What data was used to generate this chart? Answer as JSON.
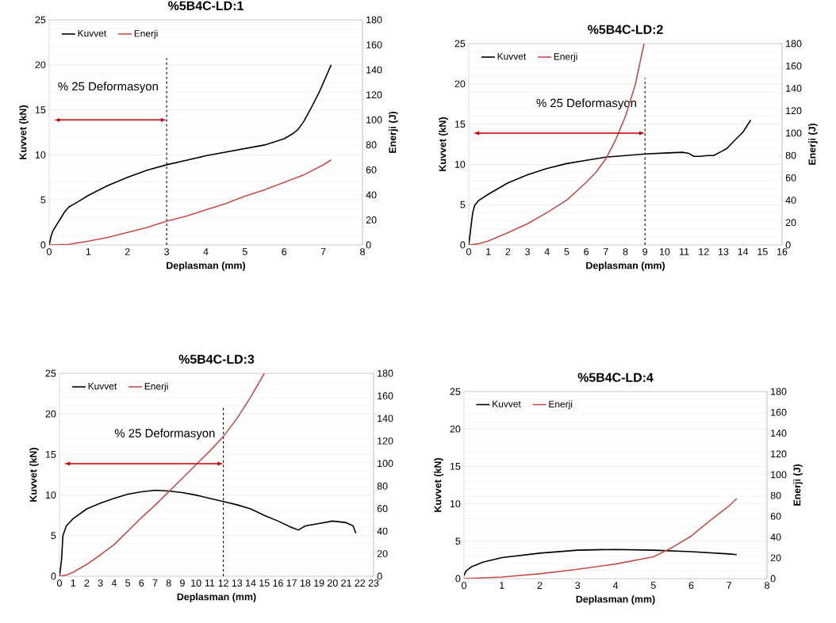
{
  "chart_data": [
    {
      "type": "line",
      "title": "%5B4C-LD:1",
      "xlabel": "Deplasman (mm)",
      "ylabel": "Kuvvet (kN)",
      "y2label": "Enerji (J)",
      "xlim": [
        0,
        8
      ],
      "xticks": [
        0,
        1,
        2,
        3,
        4,
        5,
        6,
        7,
        8
      ],
      "ylim": [
        0,
        25
      ],
      "yticks": [
        0,
        5,
        10,
        15,
        20,
        25
      ],
      "y2lim": [
        0,
        180
      ],
      "y2ticks": [
        0,
        20,
        40,
        60,
        80,
        100,
        120,
        140,
        160,
        180
      ],
      "grid": "y",
      "legend": "top left",
      "ref_lines": [
        {
          "axis": "x",
          "value": 3,
          "label": "% 25 Deformasyon",
          "line_style": "dashed",
          "color": "#000000"
        }
      ],
      "series": [
        {
          "name": "Kuvvet",
          "color": "#000000",
          "x": [
            0,
            0.05,
            0.1,
            0.2,
            0.3,
            0.4,
            0.5,
            0.7,
            1,
            1.5,
            2,
            2.5,
            3,
            3.5,
            4,
            4.5,
            5,
            5.5,
            5.8,
            6,
            6.2,
            6.35,
            6.5,
            6.7,
            6.9,
            7.1,
            7.2
          ],
          "values": [
            0,
            1,
            1.6,
            2.3,
            3,
            3.7,
            4.2,
            4.7,
            5.5,
            6.6,
            7.5,
            8.3,
            8.9,
            9.4,
            9.9,
            10.3,
            10.7,
            11.1,
            11.5,
            11.8,
            12.3,
            12.8,
            13.7,
            15.3,
            17,
            19,
            20
          ]
        },
        {
          "name": "Enerji",
          "color": "#c0504d",
          "axis": "y2",
          "x": [
            0,
            0.5,
            1,
            1.5,
            2,
            2.5,
            3,
            3.5,
            4,
            4.5,
            5,
            5.5,
            6,
            6.5,
            7,
            7.2
          ],
          "values": [
            0,
            0.5,
            3,
            6,
            10,
            14,
            19,
            23,
            28,
            33,
            39,
            44,
            50,
            56,
            64,
            68
          ]
        }
      ]
    },
    {
      "type": "line",
      "title": "%5B4C-LD:2",
      "xlabel": "Deplasman (mm)",
      "ylabel": "Kuvvet (kN)",
      "y2label": "Enerji (J)",
      "xlim": [
        0,
        16
      ],
      "xticks": [
        0,
        1,
        2,
        3,
        4,
        5,
        6,
        7,
        8,
        9,
        10,
        11,
        12,
        13,
        14,
        15,
        16
      ],
      "ylim": [
        0,
        25
      ],
      "yticks": [
        0,
        5,
        10,
        15,
        20,
        25
      ],
      "y2lim": [
        0,
        180
      ],
      "y2ticks": [
        0,
        20,
        40,
        60,
        80,
        100,
        120,
        140,
        160,
        180
      ],
      "grid": "y",
      "legend": "top left",
      "ref_lines": [
        {
          "axis": "x",
          "value": 9,
          "label": "% 25 Deformasyon",
          "line_style": "dashed",
          "color": "#000000"
        }
      ],
      "series": [
        {
          "name": "Kuvvet",
          "color": "#000000",
          "x": [
            0,
            0.1,
            0.2,
            0.3,
            0.5,
            1,
            2,
            3,
            4,
            5,
            6,
            7,
            8,
            9,
            10,
            10.9,
            11.2,
            11.5,
            11.8,
            12.2,
            12.5,
            12.9,
            13.2,
            13.5,
            14,
            14.4
          ],
          "values": [
            0,
            2,
            4,
            4.9,
            5.5,
            6.3,
            7.7,
            8.7,
            9.5,
            10.1,
            10.5,
            10.9,
            11.1,
            11.3,
            11.4,
            11.5,
            11.4,
            11,
            11,
            11.1,
            11.1,
            11.6,
            12,
            12.8,
            14,
            15.5
          ]
        },
        {
          "name": "Enerji",
          "color": "#c0504d",
          "axis": "y2",
          "x": [
            0,
            0.5,
            1,
            2,
            3,
            4,
            5,
            6,
            6.5,
            7,
            7.5,
            8,
            8.5,
            8.95
          ],
          "values": [
            0,
            1,
            3.5,
            11,
            19,
            29,
            40,
            56,
            65,
            77,
            94,
            115,
            143,
            180
          ]
        }
      ]
    },
    {
      "type": "line",
      "title": "%5B4C-LD:3",
      "xlabel": "Deplasman (mm)",
      "ylabel": "Kuvvet (kN)",
      "xlim": [
        0,
        23
      ],
      "xticks": [
        0,
        1,
        2,
        3,
        4,
        5,
        6,
        7,
        8,
        9,
        10,
        11,
        12,
        13,
        14,
        15,
        16,
        17,
        18,
        19,
        20,
        21,
        22,
        23
      ],
      "ylim": [
        0,
        25
      ],
      "yticks": [
        0,
        5,
        10,
        15,
        20,
        25
      ],
      "y2lim": [
        0,
        180
      ],
      "y2ticks": [
        0,
        20,
        40,
        60,
        80,
        100,
        120,
        140,
        160,
        180
      ],
      "grid": "y",
      "legend": "top left",
      "ref_lines": [
        {
          "axis": "x",
          "value": 12,
          "label": "% 25 Deformasyon",
          "line_style": "dashed",
          "color": "#000000"
        }
      ],
      "series": [
        {
          "name": "Kuvvet",
          "color": "#000000",
          "x": [
            0,
            0.15,
            0.25,
            0.5,
            1,
            2,
            3,
            4,
            5,
            6,
            7,
            8,
            9,
            10,
            11,
            12,
            13,
            14,
            15,
            16,
            17,
            17.5,
            18,
            19,
            20,
            21,
            21.5,
            21.7
          ],
          "values": [
            0,
            2,
            5,
            6.2,
            7.1,
            8.3,
            9,
            9.6,
            10.1,
            10.4,
            10.6,
            10.5,
            10.3,
            10,
            9.6,
            9.2,
            8.8,
            8.3,
            7.5,
            6.8,
            6,
            5.7,
            6.2,
            6.5,
            6.8,
            6.6,
            6.2,
            5.3
          ]
        },
        {
          "name": "Enerji",
          "color": "#c0504d",
          "axis": "y2",
          "x": [
            0,
            0.5,
            1,
            2,
            3,
            4,
            5,
            6,
            7,
            8,
            9,
            10,
            11,
            12,
            13,
            14,
            15
          ],
          "values": [
            0,
            1,
            3.5,
            10.5,
            19,
            28,
            40,
            52,
            63,
            75,
            87,
            99,
            111,
            124,
            140,
            159,
            180
          ]
        }
      ]
    },
    {
      "type": "line",
      "title": "%5B4C-LD:4",
      "xlabel": "Deplasman (mm)",
      "ylabel": "Kuvvet (kN)",
      "y2label": "Enerji (J)",
      "xlim": [
        0,
        8
      ],
      "xticks": [
        0,
        1,
        2,
        3,
        4,
        5,
        6,
        7,
        8
      ],
      "ylim": [
        0,
        25
      ],
      "yticks": [
        0,
        5,
        10,
        15,
        20,
        25
      ],
      "y2lim": [
        0,
        180
      ],
      "y2ticks": [
        0,
        20,
        40,
        60,
        80,
        100,
        120,
        140,
        160,
        180
      ],
      "grid": "y",
      "legend": "top left",
      "series": [
        {
          "name": "Kuvvet",
          "color": "#000000",
          "x": [
            0,
            0.05,
            0.2,
            0.5,
            1,
            2,
            3,
            4,
            5,
            6,
            7,
            7.2
          ],
          "values": [
            0.4,
            1,
            1.6,
            2.2,
            2.8,
            3.4,
            3.8,
            3.9,
            3.8,
            3.6,
            3.3,
            3.2
          ]
        },
        {
          "name": "Enerji",
          "color": "#c0504d",
          "axis": "y2",
          "x": [
            0,
            1,
            2,
            3,
            4,
            5,
            5.5,
            6,
            6.5,
            7,
            7.2
          ],
          "values": [
            0,
            1.5,
            4.7,
            9,
            14,
            21,
            30,
            41,
            56,
            70,
            77
          ]
        }
      ]
    }
  ]
}
